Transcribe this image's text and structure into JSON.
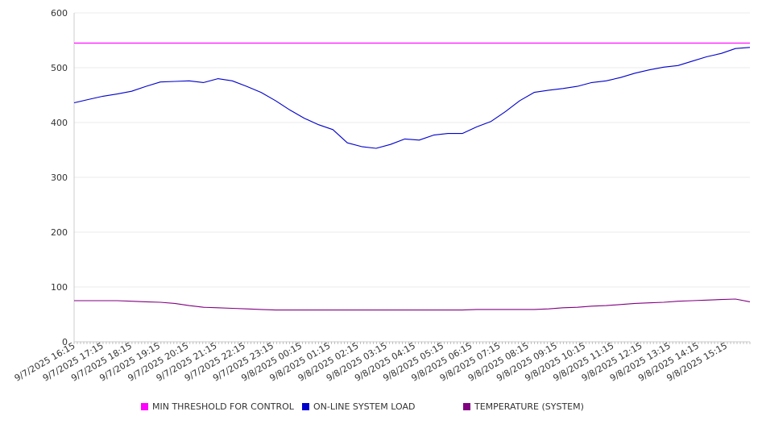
{
  "chart_data": {
    "type": "line",
    "title": "",
    "xlabel": "",
    "ylabel": "",
    "ylim": [
      0,
      600
    ],
    "yticks": [
      "0",
      "100",
      "200",
      "300",
      "400",
      "500",
      "600"
    ],
    "grid": true,
    "legend_position": "bottom",
    "x_tick_labels": [
      "9/7/2025 16:15",
      "9/7/2025 17:15",
      "9/7/2025 18:15",
      "9/7/2025 19:15",
      "9/7/2025 20:15",
      "9/7/2025 21:15",
      "9/7/2025 22:15",
      "9/7/2025 23:15",
      "9/8/2025 00:15",
      "9/8/2025 01:15",
      "9/8/2025 02:15",
      "9/8/2025 03:15",
      "9/8/2025 04:15",
      "9/8/2025 05:15",
      "9/8/2025 06:15",
      "9/8/2025 07:15",
      "9/8/2025 08:15",
      "9/8/2025 09:15",
      "9/8/2025 10:15",
      "9/8/2025 11:15",
      "9/8/2025 12:15",
      "9/8/2025 13:15",
      "9/8/2025 14:15",
      "9/8/2025 15:15"
    ],
    "x": [
      "9/7/2025 16:15",
      "9/7/2025 16:45",
      "9/7/2025 17:15",
      "9/7/2025 17:45",
      "9/7/2025 18:15",
      "9/7/2025 18:45",
      "9/7/2025 19:15",
      "9/7/2025 19:45",
      "9/7/2025 20:15",
      "9/7/2025 20:45",
      "9/7/2025 21:15",
      "9/7/2025 21:45",
      "9/7/2025 22:15",
      "9/7/2025 22:45",
      "9/7/2025 23:15",
      "9/7/2025 23:45",
      "9/8/2025 00:15",
      "9/8/2025 00:45",
      "9/8/2025 01:15",
      "9/8/2025 01:45",
      "9/8/2025 02:15",
      "9/8/2025 02:45",
      "9/8/2025 03:15",
      "9/8/2025 03:45",
      "9/8/2025 04:15",
      "9/8/2025 04:45",
      "9/8/2025 05:15",
      "9/8/2025 05:45",
      "9/8/2025 06:15",
      "9/8/2025 06:45",
      "9/8/2025 07:15",
      "9/8/2025 07:45",
      "9/8/2025 08:15",
      "9/8/2025 08:45",
      "9/8/2025 09:15",
      "9/8/2025 09:45",
      "9/8/2025 10:15",
      "9/8/2025 10:45",
      "9/8/2025 11:15",
      "9/8/2025 11:45",
      "9/8/2025 12:15",
      "9/8/2025 12:45",
      "9/8/2025 13:15",
      "9/8/2025 13:45",
      "9/8/2025 14:15",
      "9/8/2025 14:45",
      "9/8/2025 15:15",
      "9/8/2025 15:45"
    ],
    "series": [
      {
        "name": "MIN THRESHOLD FOR CONTROL",
        "color": "#ff00ff",
        "values": [
          545,
          545,
          545,
          545,
          545,
          545,
          545,
          545,
          545,
          545,
          545,
          545,
          545,
          545,
          545,
          545,
          545,
          545,
          545,
          545,
          545,
          545,
          545,
          545,
          545,
          545,
          545,
          545,
          545,
          545,
          545,
          545,
          545,
          545,
          545,
          545,
          545,
          545,
          545,
          545,
          545,
          545,
          545,
          545,
          545,
          545,
          545,
          545
        ]
      },
      {
        "name": "ON-LINE SYSTEM LOAD",
        "color": "#0000cc",
        "values": [
          436,
          442,
          448,
          452,
          457,
          466,
          474,
          475,
          476,
          473,
          480,
          476,
          466,
          455,
          440,
          423,
          408,
          396,
          387,
          363,
          356,
          353,
          360,
          370,
          368,
          377,
          380,
          380,
          392,
          402,
          420,
          440,
          455,
          459,
          462,
          466,
          473,
          476,
          482,
          490,
          496,
          501,
          504,
          512,
          520,
          526,
          535,
          537
        ]
      },
      {
        "name": "TEMPERATURE (SYSTEM)",
        "color": "#800080",
        "values": [
          75,
          75,
          75,
          75,
          74,
          73,
          72,
          70,
          66,
          63,
          62,
          61,
          60,
          59,
          58,
          58,
          58,
          58,
          58,
          58,
          58,
          58,
          58,
          58,
          58,
          58,
          58,
          58,
          59,
          59,
          59,
          59,
          59,
          60,
          62,
          63,
          65,
          66,
          68,
          70,
          71,
          72,
          74,
          75,
          76,
          77,
          78,
          73
        ]
      }
    ]
  }
}
